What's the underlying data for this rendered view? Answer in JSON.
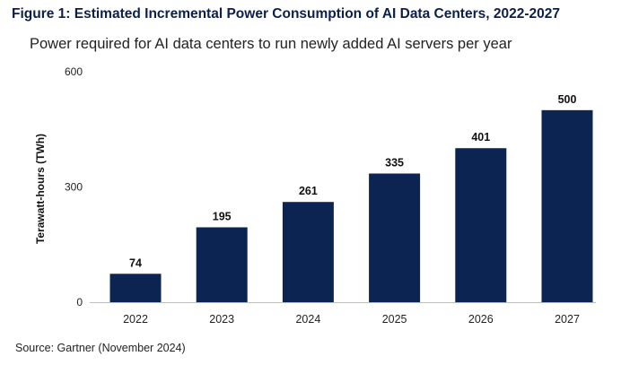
{
  "figure": {
    "title": "Figure 1: Estimated Incremental Power Consumption of AI Data Centers, 2022-2027",
    "subtitle": "Power required for AI data centers to run newly added AI servers per year",
    "source": "Source: Gartner (November 2024)"
  },
  "chart_data": {
    "type": "bar",
    "title": "Power required for AI data centers to run newly added AI servers per year",
    "xlabel": "",
    "ylabel": "Terawatt-hours (TWh)",
    "categories": [
      "2022",
      "2023",
      "2024",
      "2025",
      "2026",
      "2027"
    ],
    "values": [
      74,
      195,
      261,
      335,
      401,
      500
    ],
    "data_labels": [
      "74",
      "195",
      "261",
      "335",
      "401",
      "500"
    ],
    "ylim": [
      0,
      600
    ],
    "yticks": [
      0,
      300,
      600
    ],
    "ytick_labels": [
      "0",
      "300",
      "600"
    ],
    "grid": false,
    "legend": "none",
    "bar_color": "#0b2452"
  }
}
